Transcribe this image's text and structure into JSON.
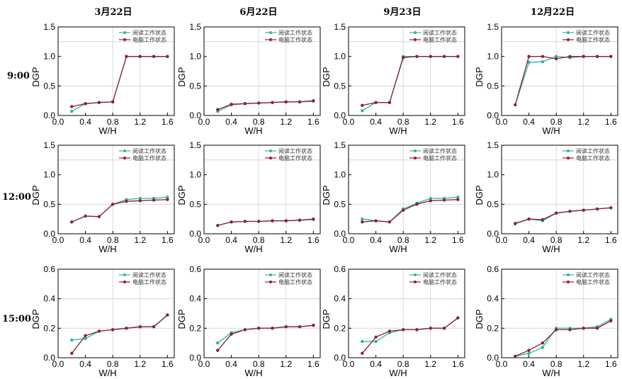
{
  "colors": {
    "reading": "#2bb3a8",
    "computer": "#8b1f36"
  },
  "column_titles": [
    "3月22日",
    "6月22日",
    "9月23日",
    "12月22日"
  ],
  "row_labels": [
    "9:00",
    "12:00",
    "15:00"
  ],
  "chart_data": [
    {
      "type": "line",
      "row": 0,
      "col": 0,
      "xlabel": "W/H",
      "ylabel": "DGP",
      "xlim": [
        0,
        1.7
      ],
      "ylim": [
        0,
        1.5
      ],
      "xticks": [
        "0.0",
        "0.4",
        "0.8",
        "1.2",
        "1.6"
      ],
      "yticks": [
        "0.0",
        "0.5",
        "1.0",
        "1.5"
      ],
      "hgrid": [
        0.5,
        1.25
      ],
      "x": [
        0.2,
        0.4,
        0.6,
        0.8,
        1.0,
        1.2,
        1.4,
        1.6
      ],
      "series": [
        {
          "name": "阅读工作状态",
          "values": [
            0.07,
            0.2,
            0.22,
            0.23,
            1.0,
            1.0,
            1.0,
            1.0
          ]
        },
        {
          "name": "电脑工作状态",
          "values": [
            0.15,
            0.2,
            0.22,
            0.23,
            1.0,
            1.0,
            1.0,
            1.0
          ]
        }
      ]
    },
    {
      "type": "line",
      "row": 0,
      "col": 1,
      "xlabel": "W/H",
      "ylabel": "DGP",
      "xlim": [
        0,
        1.7
      ],
      "ylim": [
        0,
        1.5
      ],
      "xticks": [
        "0.0",
        "0.4",
        "0.8",
        "1.2",
        "1.6"
      ],
      "yticks": [
        "0.0",
        "0.5",
        "1.0",
        "1.5"
      ],
      "hgrid": [
        0.5,
        1.25
      ],
      "x": [
        0.2,
        0.4,
        0.6,
        0.8,
        1.0,
        1.2,
        1.4,
        1.6
      ],
      "series": [
        {
          "name": "阅读工作状态",
          "values": [
            0.07,
            0.18,
            0.2,
            0.21,
            0.22,
            0.23,
            0.23,
            0.24
          ]
        },
        {
          "name": "电脑工作状态",
          "values": [
            0.1,
            0.19,
            0.2,
            0.21,
            0.22,
            0.23,
            0.23,
            0.25
          ]
        }
      ]
    },
    {
      "type": "line",
      "row": 0,
      "col": 2,
      "xlabel": "W/H",
      "ylabel": "DGP",
      "xlim": [
        0,
        1.7
      ],
      "ylim": [
        0,
        1.5
      ],
      "xticks": [
        "0.0",
        "0.4",
        "0.8",
        "1.2",
        "1.6"
      ],
      "yticks": [
        "0.0",
        "0.5",
        "1.0",
        "1.5"
      ],
      "hgrid": [
        0.5,
        1.25
      ],
      "x": [
        0.2,
        0.4,
        0.6,
        0.8,
        1.0,
        1.2,
        1.4,
        1.6
      ],
      "series": [
        {
          "name": "阅读工作状态",
          "values": [
            0.08,
            0.22,
            0.22,
            1.0,
            1.0,
            1.0,
            1.0,
            1.0
          ]
        },
        {
          "name": "电脑工作状态",
          "values": [
            0.17,
            0.22,
            0.22,
            0.98,
            1.0,
            1.0,
            1.0,
            1.0
          ]
        }
      ]
    },
    {
      "type": "line",
      "row": 0,
      "col": 3,
      "xlabel": "W/H",
      "ylabel": "DGP",
      "xlim": [
        0,
        1.7
      ],
      "ylim": [
        0,
        1.5
      ],
      "xticks": [
        "0.0",
        "0.4",
        "0.8",
        "1.2",
        "1.6"
      ],
      "yticks": [
        "0.0",
        "0.5",
        "1.0",
        "1.5"
      ],
      "hgrid": [
        0.5,
        1.25
      ],
      "x": [
        0.2,
        0.4,
        0.6,
        0.8,
        1.0,
        1.2,
        1.4,
        1.6
      ],
      "series": [
        {
          "name": "阅读工作状态",
          "values": [
            0.18,
            0.9,
            0.91,
            1.0,
            0.98,
            1.0,
            1.0,
            1.0
          ]
        },
        {
          "name": "电脑工作状态",
          "values": [
            0.18,
            1.0,
            1.0,
            0.96,
            1.0,
            1.0,
            1.0,
            1.0
          ]
        }
      ]
    },
    {
      "type": "line",
      "row": 1,
      "col": 0,
      "xlabel": "W/H",
      "ylabel": "DGP",
      "xlim": [
        0,
        1.7
      ],
      "ylim": [
        0,
        1.5
      ],
      "xticks": [
        "0.0",
        "0.4",
        "0.8",
        "1.2",
        "1.6"
      ],
      "yticks": [
        "0.0",
        "0.5",
        "1.0",
        "1.5"
      ],
      "hgrid": [
        0.5,
        1.25
      ],
      "x": [
        0.2,
        0.4,
        0.6,
        0.8,
        1.0,
        1.2,
        1.4,
        1.6
      ],
      "series": [
        {
          "name": "阅读工作状态",
          "values": [
            0.2,
            0.3,
            0.29,
            0.5,
            0.58,
            0.6,
            0.6,
            0.62
          ]
        },
        {
          "name": "电脑工作状态",
          "values": [
            0.2,
            0.3,
            0.29,
            0.5,
            0.55,
            0.56,
            0.57,
            0.58
          ]
        }
      ]
    },
    {
      "type": "line",
      "row": 1,
      "col": 1,
      "xlabel": "W/H",
      "ylabel": "DGP",
      "xlim": [
        0,
        1.7
      ],
      "ylim": [
        0,
        1.5
      ],
      "xticks": [
        "0.0",
        "0.4",
        "0.8",
        "1.2",
        "1.6"
      ],
      "yticks": [
        "0.0",
        "0.5",
        "1.0",
        "1.5"
      ],
      "hgrid": [
        0.5,
        1.25
      ],
      "x": [
        0.2,
        0.4,
        0.6,
        0.8,
        1.0,
        1.2,
        1.4,
        1.6
      ],
      "series": [
        {
          "name": "阅读工作状态",
          "values": [
            0.14,
            0.2,
            0.21,
            0.21,
            0.22,
            0.22,
            0.23,
            0.24
          ]
        },
        {
          "name": "电脑工作状态",
          "values": [
            0.14,
            0.2,
            0.21,
            0.21,
            0.22,
            0.22,
            0.23,
            0.25
          ]
        }
      ]
    },
    {
      "type": "line",
      "row": 1,
      "col": 2,
      "xlabel": "W/H",
      "ylabel": "DGP",
      "xlim": [
        0,
        1.7
      ],
      "ylim": [
        0,
        1.5
      ],
      "xticks": [
        "0.0",
        "0.4",
        "0.8",
        "1.2",
        "1.6"
      ],
      "yticks": [
        "0.0",
        "0.5",
        "1.0",
        "1.5"
      ],
      "hgrid": [
        0.5,
        1.25
      ],
      "x": [
        0.2,
        0.4,
        0.6,
        0.8,
        1.0,
        1.2,
        1.4,
        1.6
      ],
      "series": [
        {
          "name": "阅读工作状态",
          "values": [
            0.25,
            0.22,
            0.2,
            0.42,
            0.52,
            0.6,
            0.6,
            0.62
          ]
        },
        {
          "name": "电脑工作状态",
          "values": [
            0.2,
            0.22,
            0.2,
            0.4,
            0.5,
            0.56,
            0.57,
            0.58
          ]
        }
      ]
    },
    {
      "type": "line",
      "row": 1,
      "col": 3,
      "xlabel": "W/H",
      "ylabel": "DGP",
      "xlim": [
        0,
        1.7
      ],
      "ylim": [
        0,
        1.5
      ],
      "xticks": [
        "0.0",
        "0.4",
        "0.8",
        "1.2",
        "1.6"
      ],
      "yticks": [
        "0.0",
        "0.5",
        "1.0",
        "1.5"
      ],
      "hgrid": [
        0.5,
        1.25
      ],
      "x": [
        0.2,
        0.4,
        0.6,
        0.8,
        1.0,
        1.2,
        1.4,
        1.6
      ],
      "series": [
        {
          "name": "阅读工作状态",
          "values": [
            0.18,
            0.25,
            0.22,
            0.35,
            0.38,
            0.4,
            0.42,
            0.44
          ]
        },
        {
          "name": "电脑工作状态",
          "values": [
            0.17,
            0.25,
            0.24,
            0.35,
            0.38,
            0.4,
            0.42,
            0.44
          ]
        }
      ]
    },
    {
      "type": "line",
      "row": 2,
      "col": 0,
      "xlabel": "W/H",
      "ylabel": "DGP",
      "xlim": [
        0,
        1.7
      ],
      "ylim": [
        0,
        0.6
      ],
      "xticks": [
        "0.0",
        "0.4",
        "0.8",
        "1.2",
        "1.6"
      ],
      "yticks": [
        "0.0",
        "0.2",
        "0.4",
        "0.6"
      ],
      "hgrid": [
        0.2,
        0.4
      ],
      "x": [
        0.2,
        0.4,
        0.6,
        0.8,
        1.0,
        1.2,
        1.4,
        1.6
      ],
      "series": [
        {
          "name": "阅读工作状态",
          "values": [
            0.12,
            0.13,
            0.18,
            0.19,
            0.2,
            0.21,
            0.21,
            0.29
          ]
        },
        {
          "name": "电脑工作状态",
          "values": [
            0.03,
            0.15,
            0.18,
            0.19,
            0.2,
            0.21,
            0.21,
            0.29
          ]
        }
      ]
    },
    {
      "type": "line",
      "row": 2,
      "col": 1,
      "xlabel": "W/H",
      "ylabel": "DGP",
      "xlim": [
        0,
        1.7
      ],
      "ylim": [
        0,
        0.6
      ],
      "xticks": [
        "0.0",
        "0.4",
        "0.8",
        "1.2",
        "1.6"
      ],
      "yticks": [
        "0.0",
        "0.2",
        "0.4",
        "0.6"
      ],
      "hgrid": [
        0.2,
        0.4
      ],
      "x": [
        0.2,
        0.4,
        0.6,
        0.8,
        1.0,
        1.2,
        1.4,
        1.6
      ],
      "series": [
        {
          "name": "阅读工作状态",
          "values": [
            0.1,
            0.17,
            0.19,
            0.2,
            0.2,
            0.21,
            0.21,
            0.22
          ]
        },
        {
          "name": "电脑工作状态",
          "values": [
            0.05,
            0.16,
            0.19,
            0.2,
            0.2,
            0.21,
            0.21,
            0.22
          ]
        }
      ]
    },
    {
      "type": "line",
      "row": 2,
      "col": 2,
      "xlabel": "W/H",
      "ylabel": "DGP",
      "xlim": [
        0,
        1.7
      ],
      "ylim": [
        0,
        0.6
      ],
      "xticks": [
        "0.0",
        "0.4",
        "0.8",
        "1.2",
        "1.6"
      ],
      "yticks": [
        "0.0",
        "0.2",
        "0.4",
        "0.6"
      ],
      "hgrid": [
        0.2,
        0.4
      ],
      "x": [
        0.2,
        0.4,
        0.6,
        0.8,
        1.0,
        1.2,
        1.4,
        1.6
      ],
      "series": [
        {
          "name": "阅读工作状态",
          "values": [
            0.11,
            0.11,
            0.17,
            0.19,
            0.19,
            0.2,
            0.2,
            0.27
          ]
        },
        {
          "name": "电脑工作状态",
          "values": [
            0.03,
            0.14,
            0.18,
            0.19,
            0.19,
            0.2,
            0.2,
            0.27
          ]
        }
      ]
    },
    {
      "type": "line",
      "row": 2,
      "col": 3,
      "xlabel": "W/H",
      "ylabel": "DGP",
      "xlim": [
        0,
        1.7
      ],
      "ylim": [
        0,
        0.6
      ],
      "xticks": [
        "0.0",
        "0.4",
        "0.8",
        "1.2",
        "1.6"
      ],
      "yticks": [
        "0.0",
        "0.2",
        "0.4",
        "0.6"
      ],
      "hgrid": [
        0.2,
        0.4
      ],
      "x": [
        0.2,
        0.4,
        0.6,
        0.8,
        1.0,
        1.2,
        1.4,
        1.6
      ],
      "series": [
        {
          "name": "阅读工作状态",
          "values": [
            0.01,
            0.03,
            0.07,
            0.2,
            0.2,
            0.2,
            0.21,
            0.26
          ]
        },
        {
          "name": "电脑工作状态",
          "values": [
            0.01,
            0.05,
            0.1,
            0.19,
            0.19,
            0.2,
            0.2,
            0.25
          ]
        }
      ]
    }
  ]
}
